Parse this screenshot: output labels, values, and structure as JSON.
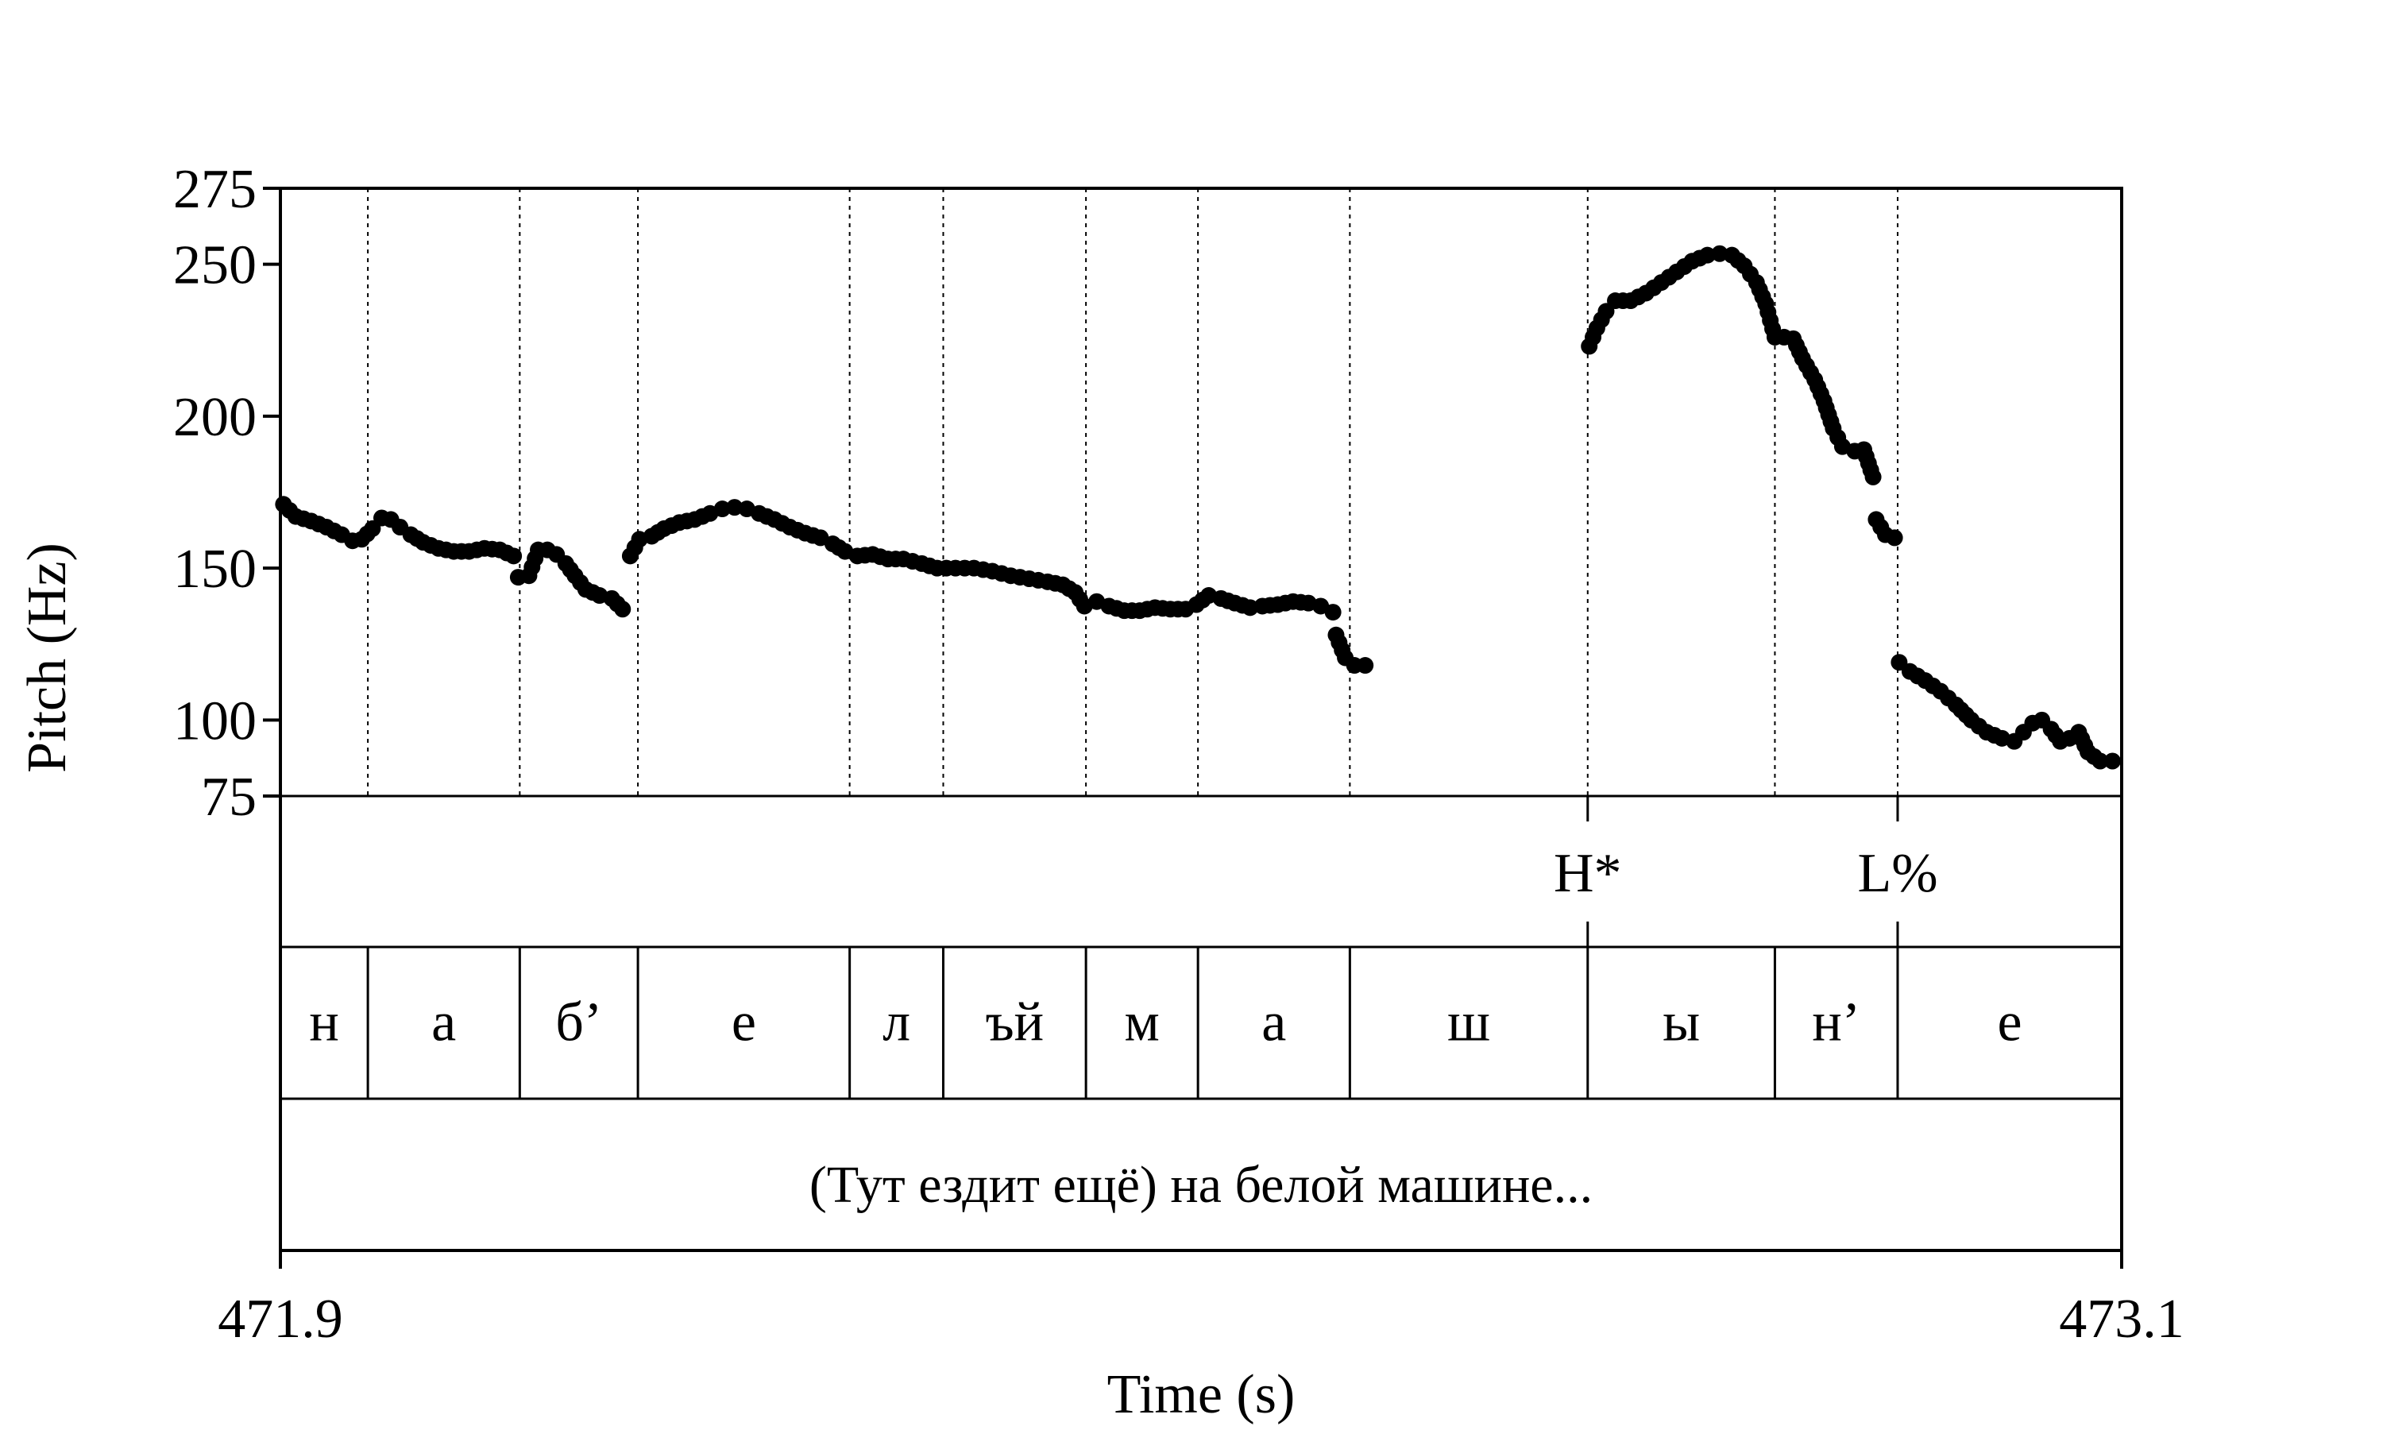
{
  "chart_data": {
    "type": "scatter",
    "title": "",
    "xlabel": "Time (s)",
    "ylabel": "Pitch (Hz)",
    "xlim": [
      471.9,
      473.1
    ],
    "ylim": [
      75,
      275
    ],
    "x_ticks": [
      "471.9",
      "473.1"
    ],
    "y_ticks": [
      {
        "value": 75,
        "label": "75"
      },
      {
        "value": 100,
        "label": "100"
      },
      {
        "value": 150,
        "label": "150"
      },
      {
        "value": 200,
        "label": "200"
      },
      {
        "value": 250,
        "label": "250"
      },
      {
        "value": 275,
        "label": "275"
      }
    ],
    "boundaries": [
      471.957,
      472.056,
      472.133,
      472.271,
      472.332,
      472.425,
      472.498,
      472.597,
      472.752,
      472.874,
      472.954
    ],
    "pitch_segments": [
      [
        [
          471.902,
          171
        ],
        [
          471.91,
          167
        ],
        [
          471.92,
          165.5
        ],
        [
          471.93,
          163.5
        ],
        [
          471.94,
          161
        ],
        [
          471.947,
          159
        ],
        [
          471.953,
          159.5
        ],
        [
          471.96,
          163
        ],
        [
          471.966,
          166.5
        ],
        [
          471.972,
          166
        ],
        [
          471.978,
          163.5
        ],
        [
          471.985,
          161
        ],
        [
          471.993,
          158.5
        ],
        [
          472.003,
          156.5
        ],
        [
          472.013,
          155.5
        ],
        [
          472.023,
          155.5
        ],
        [
          472.033,
          156.5
        ],
        [
          472.043,
          156
        ],
        [
          472.052,
          154
        ]
      ],
      [
        [
          472.055,
          147
        ],
        [
          472.062,
          147.5
        ],
        [
          472.068,
          156
        ],
        [
          472.074,
          156
        ],
        [
          472.08,
          154.5
        ],
        [
          472.086,
          151.5
        ],
        [
          472.092,
          147.5
        ],
        [
          472.099,
          143
        ],
        [
          472.108,
          141
        ],
        [
          472.116,
          140
        ],
        [
          472.123,
          136.5
        ]
      ],
      [
        [
          472.128,
          154
        ],
        [
          472.134,
          159.5
        ],
        [
          472.142,
          160.5
        ],
        [
          472.15,
          163
        ],
        [
          472.16,
          165
        ],
        [
          472.17,
          166
        ],
        [
          472.18,
          168
        ],
        [
          472.188,
          169.5
        ],
        [
          472.196,
          170
        ],
        [
          472.204,
          169.5
        ],
        [
          472.212,
          168
        ],
        [
          472.222,
          166
        ],
        [
          472.232,
          163.5
        ],
        [
          472.242,
          161.5
        ],
        [
          472.252,
          160
        ],
        [
          472.26,
          158
        ],
        [
          472.268,
          155.5
        ],
        [
          472.276,
          154
        ],
        [
          472.286,
          154.5
        ],
        [
          472.296,
          153
        ],
        [
          472.306,
          153
        ],
        [
          472.318,
          151.5
        ],
        [
          472.328,
          150
        ],
        [
          472.34,
          150
        ],
        [
          472.352,
          150
        ],
        [
          472.364,
          149
        ],
        [
          472.376,
          147.5
        ],
        [
          472.388,
          146.5
        ],
        [
          472.4,
          145.5
        ],
        [
          472.41,
          144.5
        ],
        [
          472.418,
          142
        ],
        [
          472.424,
          137.5
        ],
        [
          472.432,
          139
        ],
        [
          472.44,
          137.5
        ],
        [
          472.45,
          136
        ],
        [
          472.46,
          136
        ],
        [
          472.47,
          137
        ],
        [
          472.48,
          136.5
        ],
        [
          472.49,
          136.5
        ],
        [
          472.497,
          138
        ],
        [
          472.505,
          141
        ],
        [
          472.513,
          140
        ],
        [
          472.522,
          138.5
        ],
        [
          472.532,
          137
        ],
        [
          472.54,
          137.5
        ],
        [
          472.55,
          138
        ],
        [
          472.56,
          139
        ],
        [
          472.57,
          138.5
        ],
        [
          472.578,
          137.5
        ],
        [
          472.586,
          135.5
        ]
      ],
      [
        [
          472.588,
          128
        ],
        [
          472.594,
          120.5
        ],
        [
          472.6,
          118
        ],
        [
          472.607,
          118
        ]
      ],
      [
        [
          472.753,
          223
        ],
        [
          472.758,
          229
        ],
        [
          472.764,
          234.5
        ],
        [
          472.77,
          238
        ],
        [
          472.78,
          238
        ],
        [
          472.79,
          240.5
        ],
        [
          472.8,
          244
        ],
        [
          472.81,
          247.5
        ],
        [
          472.82,
          251
        ],
        [
          472.83,
          253
        ],
        [
          472.838,
          253.5
        ],
        [
          472.846,
          253
        ],
        [
          472.854,
          249.5
        ],
        [
          472.862,
          244
        ],
        [
          472.868,
          237
        ],
        [
          472.874,
          226
        ],
        [
          472.88,
          226
        ],
        [
          472.886,
          225.5
        ],
        [
          472.892,
          219
        ],
        [
          472.9,
          212
        ],
        [
          472.906,
          205
        ],
        [
          472.912,
          196
        ],
        [
          472.918,
          190
        ],
        [
          472.926,
          188.5
        ],
        [
          472.932,
          189
        ],
        [
          472.938,
          180
        ]
      ],
      [
        [
          472.94,
          166
        ],
        [
          472.946,
          161
        ],
        [
          472.952,
          160
        ]
      ],
      [
        [
          472.955,
          119
        ],
        [
          472.962,
          116
        ],
        [
          472.972,
          113
        ],
        [
          472.982,
          109.5
        ],
        [
          472.992,
          105
        ],
        [
          473.002,
          100
        ],
        [
          473.012,
          96
        ],
        [
          473.022,
          94
        ],
        [
          473.03,
          93
        ],
        [
          473.036,
          96
        ],
        [
          473.042,
          99
        ],
        [
          473.048,
          100
        ],
        [
          473.054,
          97
        ],
        [
          473.06,
          93
        ],
        [
          473.066,
          94
        ],
        [
          473.072,
          96
        ],
        [
          473.078,
          89.5
        ],
        [
          473.086,
          86.5
        ],
        [
          473.094,
          86.5
        ]
      ]
    ],
    "tone_tier": [
      {
        "time": 472.752,
        "label": "H*"
      },
      {
        "time": 472.954,
        "label": "L%"
      }
    ],
    "segment_tier": [
      {
        "label": "н"
      },
      {
        "label": "а"
      },
      {
        "label": "б’"
      },
      {
        "label": "е"
      },
      {
        "label": "л"
      },
      {
        "label": "ъй"
      },
      {
        "label": "м"
      },
      {
        "label": "а"
      },
      {
        "label": "ш"
      },
      {
        "label": "ы"
      },
      {
        "label": "н’"
      },
      {
        "label": "е"
      }
    ],
    "sentence": "(Тут ездит ещё) на белой машине...",
    "point_color": "#000000"
  }
}
